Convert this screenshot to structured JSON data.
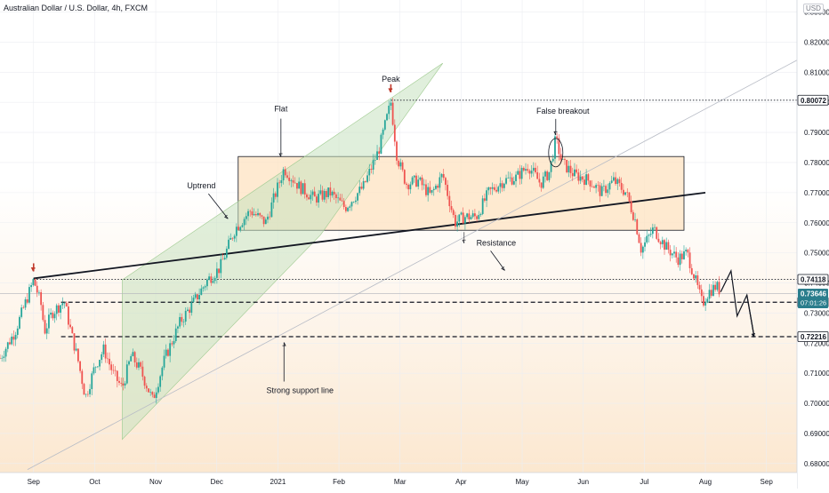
{
  "header": {
    "symbol_title": "Australian Dollar / U.S. Dollar, 4h, FXCM",
    "currency": "USD"
  },
  "colors": {
    "up_candle": "#26a69a",
    "down_candle": "#ef5350",
    "arrow_red": "#c0392b",
    "channel_fill": "#c7e2bf",
    "box_fill": "#fde3c2",
    "price_tag_dark": "#131722",
    "price_tag_teal": "#2a7d8c"
  },
  "chart_data": {
    "type": "candlestick",
    "instrument": "AUD/USD",
    "timeframe": "4h",
    "yaxis": {
      "ticks": [
        "0.83000",
        "0.82000",
        "0.81000",
        "0.80000",
        "0.79000",
        "0.78000",
        "0.77000",
        "0.76000",
        "0.75000",
        "0.74000",
        "0.73000",
        "0.72000",
        "0.71000",
        "0.70000",
        "0.69000",
        "0.68000"
      ],
      "tick_values": [
        0.83,
        0.82,
        0.81,
        0.8,
        0.79,
        0.78,
        0.77,
        0.76,
        0.75,
        0.74,
        0.73,
        0.72,
        0.71,
        0.7,
        0.69,
        0.68
      ],
      "range": [
        0.677,
        0.834
      ]
    },
    "xaxis": {
      "labels": [
        "Sep",
        "Oct",
        "Nov",
        "Dec",
        "2021",
        "Feb",
        "Mar",
        "Apr",
        "May",
        "Jun",
        "Jul",
        "Aug",
        "Sep"
      ],
      "label_months": [
        0,
        1,
        2,
        3,
        4,
        5,
        6,
        7,
        8,
        9,
        10,
        11,
        12
      ],
      "range_months": [
        -0.55,
        12.5
      ]
    },
    "price_path": [
      [
        -0.55,
        0.715
      ],
      [
        -0.3,
        0.724
      ],
      [
        0.0,
        0.741
      ],
      [
        0.12,
        0.733
      ],
      [
        0.18,
        0.724
      ],
      [
        0.3,
        0.73
      ],
      [
        0.5,
        0.734
      ],
      [
        0.62,
        0.723
      ],
      [
        0.72,
        0.715
      ],
      [
        0.85,
        0.702
      ],
      [
        1.0,
        0.712
      ],
      [
        1.15,
        0.718
      ],
      [
        1.3,
        0.71
      ],
      [
        1.45,
        0.705
      ],
      [
        1.6,
        0.716
      ],
      [
        1.75,
        0.711
      ],
      [
        1.95,
        0.701
      ],
      [
        2.15,
        0.715
      ],
      [
        2.4,
        0.727
      ],
      [
        2.6,
        0.733
      ],
      [
        2.85,
        0.741
      ],
      [
        3.05,
        0.745
      ],
      [
        3.3,
        0.758
      ],
      [
        3.55,
        0.764
      ],
      [
        3.8,
        0.76
      ],
      [
        4.1,
        0.778
      ],
      [
        4.35,
        0.772
      ],
      [
        4.6,
        0.768
      ],
      [
        4.85,
        0.77
      ],
      [
        5.1,
        0.765
      ],
      [
        5.4,
        0.772
      ],
      [
        5.65,
        0.784
      ],
      [
        5.85,
        0.8
      ],
      [
        5.95,
        0.782
      ],
      [
        6.1,
        0.773
      ],
      [
        6.3,
        0.774
      ],
      [
        6.5,
        0.769
      ],
      [
        6.7,
        0.776
      ],
      [
        6.9,
        0.76
      ],
      [
        7.05,
        0.762
      ],
      [
        7.25,
        0.762
      ],
      [
        7.45,
        0.77
      ],
      [
        7.7,
        0.774
      ],
      [
        7.9,
        0.775
      ],
      [
        8.1,
        0.779
      ],
      [
        8.3,
        0.773
      ],
      [
        8.45,
        0.777
      ],
      [
        8.55,
        0.788
      ],
      [
        8.65,
        0.78
      ],
      [
        8.85,
        0.776
      ],
      [
        9.1,
        0.774
      ],
      [
        9.3,
        0.77
      ],
      [
        9.5,
        0.774
      ],
      [
        9.7,
        0.77
      ],
      [
        9.85,
        0.761
      ],
      [
        9.95,
        0.751
      ],
      [
        10.15,
        0.758
      ],
      [
        10.35,
        0.752
      ],
      [
        10.55,
        0.748
      ],
      [
        10.7,
        0.75
      ],
      [
        10.82,
        0.742
      ],
      [
        10.95,
        0.733
      ],
      [
        11.05,
        0.737
      ],
      [
        11.18,
        0.739
      ],
      [
        11.25,
        0.737
      ]
    ],
    "projection": [
      [
        11.25,
        0.737
      ],
      [
        11.42,
        0.744
      ],
      [
        11.52,
        0.729
      ],
      [
        11.68,
        0.736
      ],
      [
        11.8,
        0.722
      ]
    ],
    "levels": [
      {
        "price": 0.80072,
        "label": "0.80072",
        "style": "dotted",
        "from_month": 5.85
      },
      {
        "price": 0.74118,
        "label": "0.74118",
        "style": "dotted",
        "from_month": 0.0
      },
      {
        "price": 0.73359,
        "label": "0.73359",
        "style": "dashed",
        "from_month": 0.45
      },
      {
        "price": 0.72216,
        "label": "0.72216",
        "style": "dashed",
        "from_month": 0.45
      }
    ],
    "current_price": {
      "price": 0.73646,
      "label": "0.73646",
      "countdown": "07:01:26"
    },
    "trendlines": [
      {
        "name": "rising trendline",
        "from": [
          0.0,
          0.7415
        ],
        "to": [
          11.0,
          0.77
        ],
        "weight": "bold"
      },
      {
        "name": "strong support line",
        "from": [
          -0.1,
          0.678
        ],
        "to": [
          12.5,
          0.814
        ],
        "weight": "thin"
      }
    ],
    "channel": {
      "lower_start": [
        1.45,
        0.688
      ],
      "lower_end": [
        4.7,
        0.756
      ],
      "upper_start": [
        1.45,
        0.741
      ],
      "upper_end": [
        6.7,
        0.813
      ]
    },
    "range_box": {
      "from_month": 3.35,
      "to_month": 10.65,
      "top": 0.782,
      "bottom": 0.7575
    },
    "annotations": [
      {
        "text": "Peak",
        "month": 5.85,
        "price": 0.801
      },
      {
        "text": "Flat",
        "month": 4.05,
        "price": 0.781
      },
      {
        "text": "Uptrend",
        "month": 3.3,
        "price": 0.759
      },
      {
        "text": "False breakout",
        "month": 8.55,
        "price": 0.788
      },
      {
        "text": "Resistance",
        "month": 7.6,
        "price": 0.743
      },
      {
        "text": "Strong support line",
        "month": 4.1,
        "price": 0.722
      }
    ],
    "peak_arrows": [
      [
        0.0,
        0.7415
      ],
      [
        5.85,
        0.801
      ]
    ]
  }
}
